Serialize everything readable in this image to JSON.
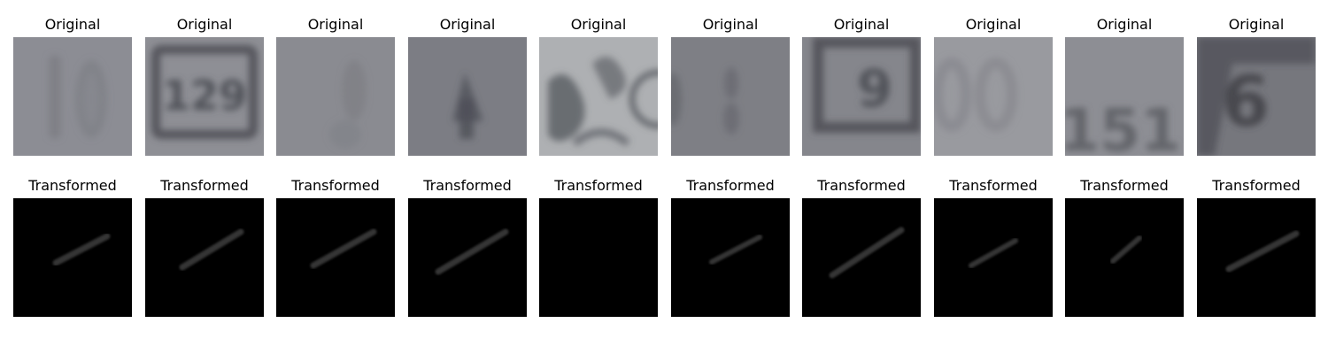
{
  "figure": {
    "original_title": "Original",
    "transformed_title": "Transformed",
    "original_images": [
      {
        "content": "blurry gray digits",
        "bg": "#8c8d94",
        "mark": "#74757c"
      },
      {
        "content": "digits 129 on a plate",
        "bg": "#8e8f95",
        "mark": "#4a4b52"
      },
      {
        "content": "very blurry gray digit",
        "bg": "#8a8b91",
        "mark": "#76777d"
      },
      {
        "content": "digit 4",
        "bg": "#7c7d84",
        "mark": "#4e4f56"
      },
      {
        "content": "light gray texture with partial digit",
        "bg": "#aeb0b3",
        "mark": "#53565c"
      },
      {
        "content": "blurry dark digits",
        "bg": "#7e7f85",
        "mark": "#5e5f66"
      },
      {
        "content": "digit 9 on a plate",
        "bg": "#85868c",
        "mark": "#4c4d54"
      },
      {
        "content": "blurry light digits",
        "bg": "#999a9f",
        "mark": "#7f8086"
      },
      {
        "content": "digits 151",
        "bg": "#8d8e94",
        "mark": "#5c5d63"
      },
      {
        "content": "digit 6",
        "bg": "#76777d",
        "mark": "#3f4047"
      }
    ],
    "transformed_images": [
      {
        "has_stroke": true,
        "intensity": 0.55
      },
      {
        "has_stroke": true,
        "intensity": 0.55
      },
      {
        "has_stroke": true,
        "intensity": 0.55
      },
      {
        "has_stroke": true,
        "intensity": 0.55
      },
      {
        "has_stroke": false,
        "intensity": 0
      },
      {
        "has_stroke": true,
        "intensity": 0.55
      },
      {
        "has_stroke": true,
        "intensity": 0.55
      },
      {
        "has_stroke": true,
        "intensity": 0.55
      },
      {
        "has_stroke": true,
        "intensity": 0.55
      },
      {
        "has_stroke": true,
        "intensity": 0.55
      }
    ],
    "colors": {
      "page_bg": "#ffffff",
      "transformed_bg": "#000000",
      "stroke": "#4a4a4a"
    }
  }
}
